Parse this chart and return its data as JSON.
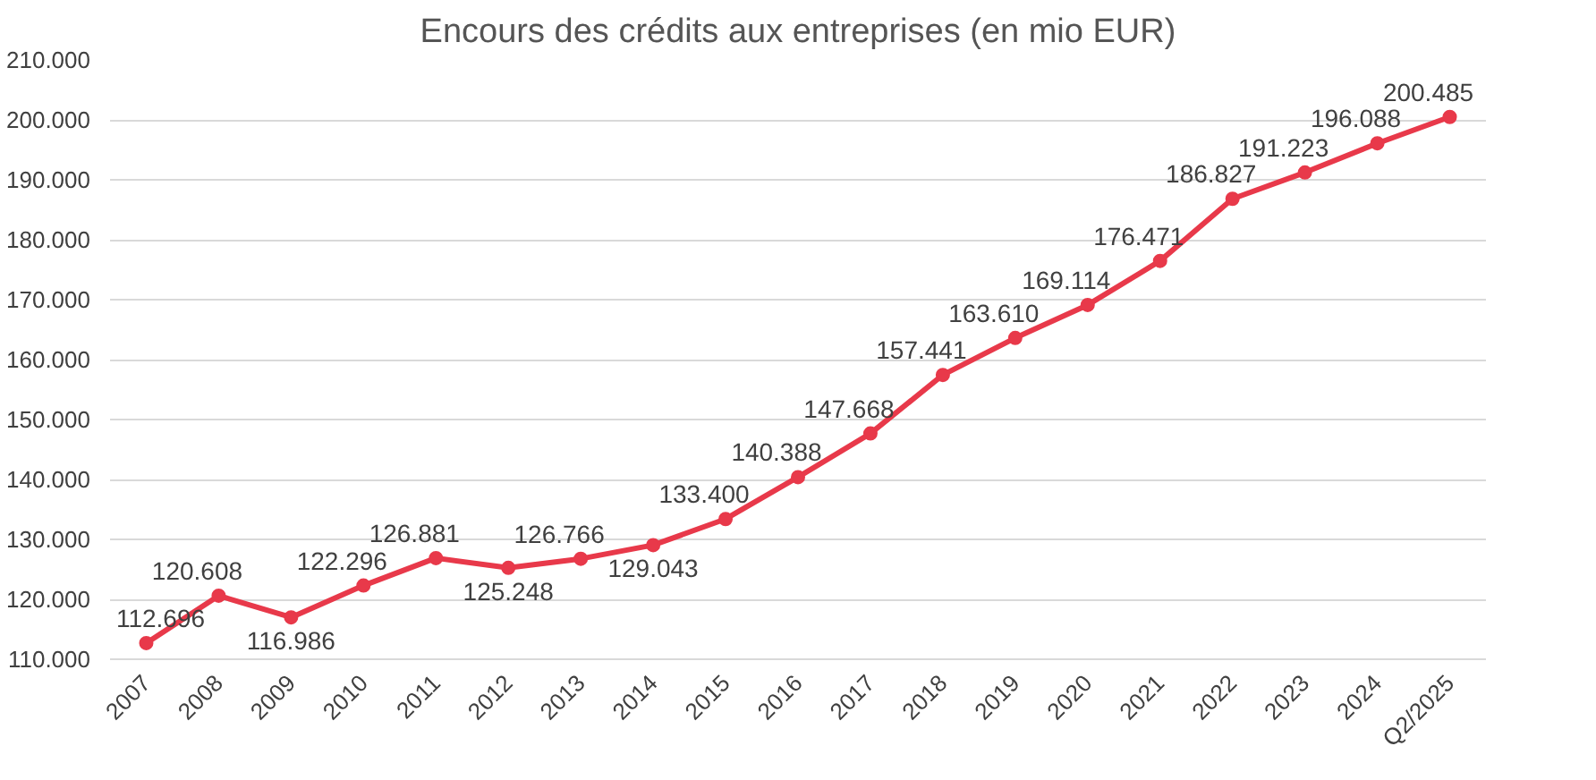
{
  "chart_data": {
    "type": "line",
    "title": "Encours des crédits aux entreprises (en mio EUR)",
    "categories": [
      "2007",
      "2008",
      "2009",
      "2010",
      "2011",
      "2012",
      "2013",
      "2014",
      "2015",
      "2016",
      "2017",
      "2018",
      "2019",
      "2020",
      "2021",
      "2022",
      "2023",
      "2024",
      "Q2/2025"
    ],
    "series": [
      {
        "color": "#e8394a",
        "values": [
          112696,
          120608,
          116986,
          122296,
          126881,
          125248,
          126766,
          129043,
          133400,
          140388,
          147668,
          157441,
          163610,
          169114,
          176471,
          186827,
          191223,
          196088,
          200485
        ],
        "value_labels": [
          "112.696",
          "120.608",
          "116.986",
          "122.296",
          "126.881",
          "125.248",
          "126.766",
          "129.043",
          "133.400",
          "140.388",
          "147.668",
          "157.441",
          "163.610",
          "169.114",
          "176.471",
          "186.827",
          "191.223",
          "196.088",
          "200.485"
        ]
      }
    ],
    "ylim": [
      110000,
      210000
    ],
    "yticks": [
      {
        "value": 110000,
        "label": "110.000"
      },
      {
        "value": 120000,
        "label": "120.000"
      },
      {
        "value": 130000,
        "label": "130.000"
      },
      {
        "value": 140000,
        "label": "140.000"
      },
      {
        "value": 150000,
        "label": "150.000"
      },
      {
        "value": 160000,
        "label": "160.000"
      },
      {
        "value": 170000,
        "label": "170.000"
      },
      {
        "value": 180000,
        "label": "180.000"
      },
      {
        "value": 190000,
        "label": "190.000"
      },
      {
        "value": 200000,
        "label": "200.000"
      },
      {
        "value": 210000,
        "label": "210.000"
      }
    ],
    "grid": "y",
    "marker": "circle",
    "line_style": "solid"
  }
}
